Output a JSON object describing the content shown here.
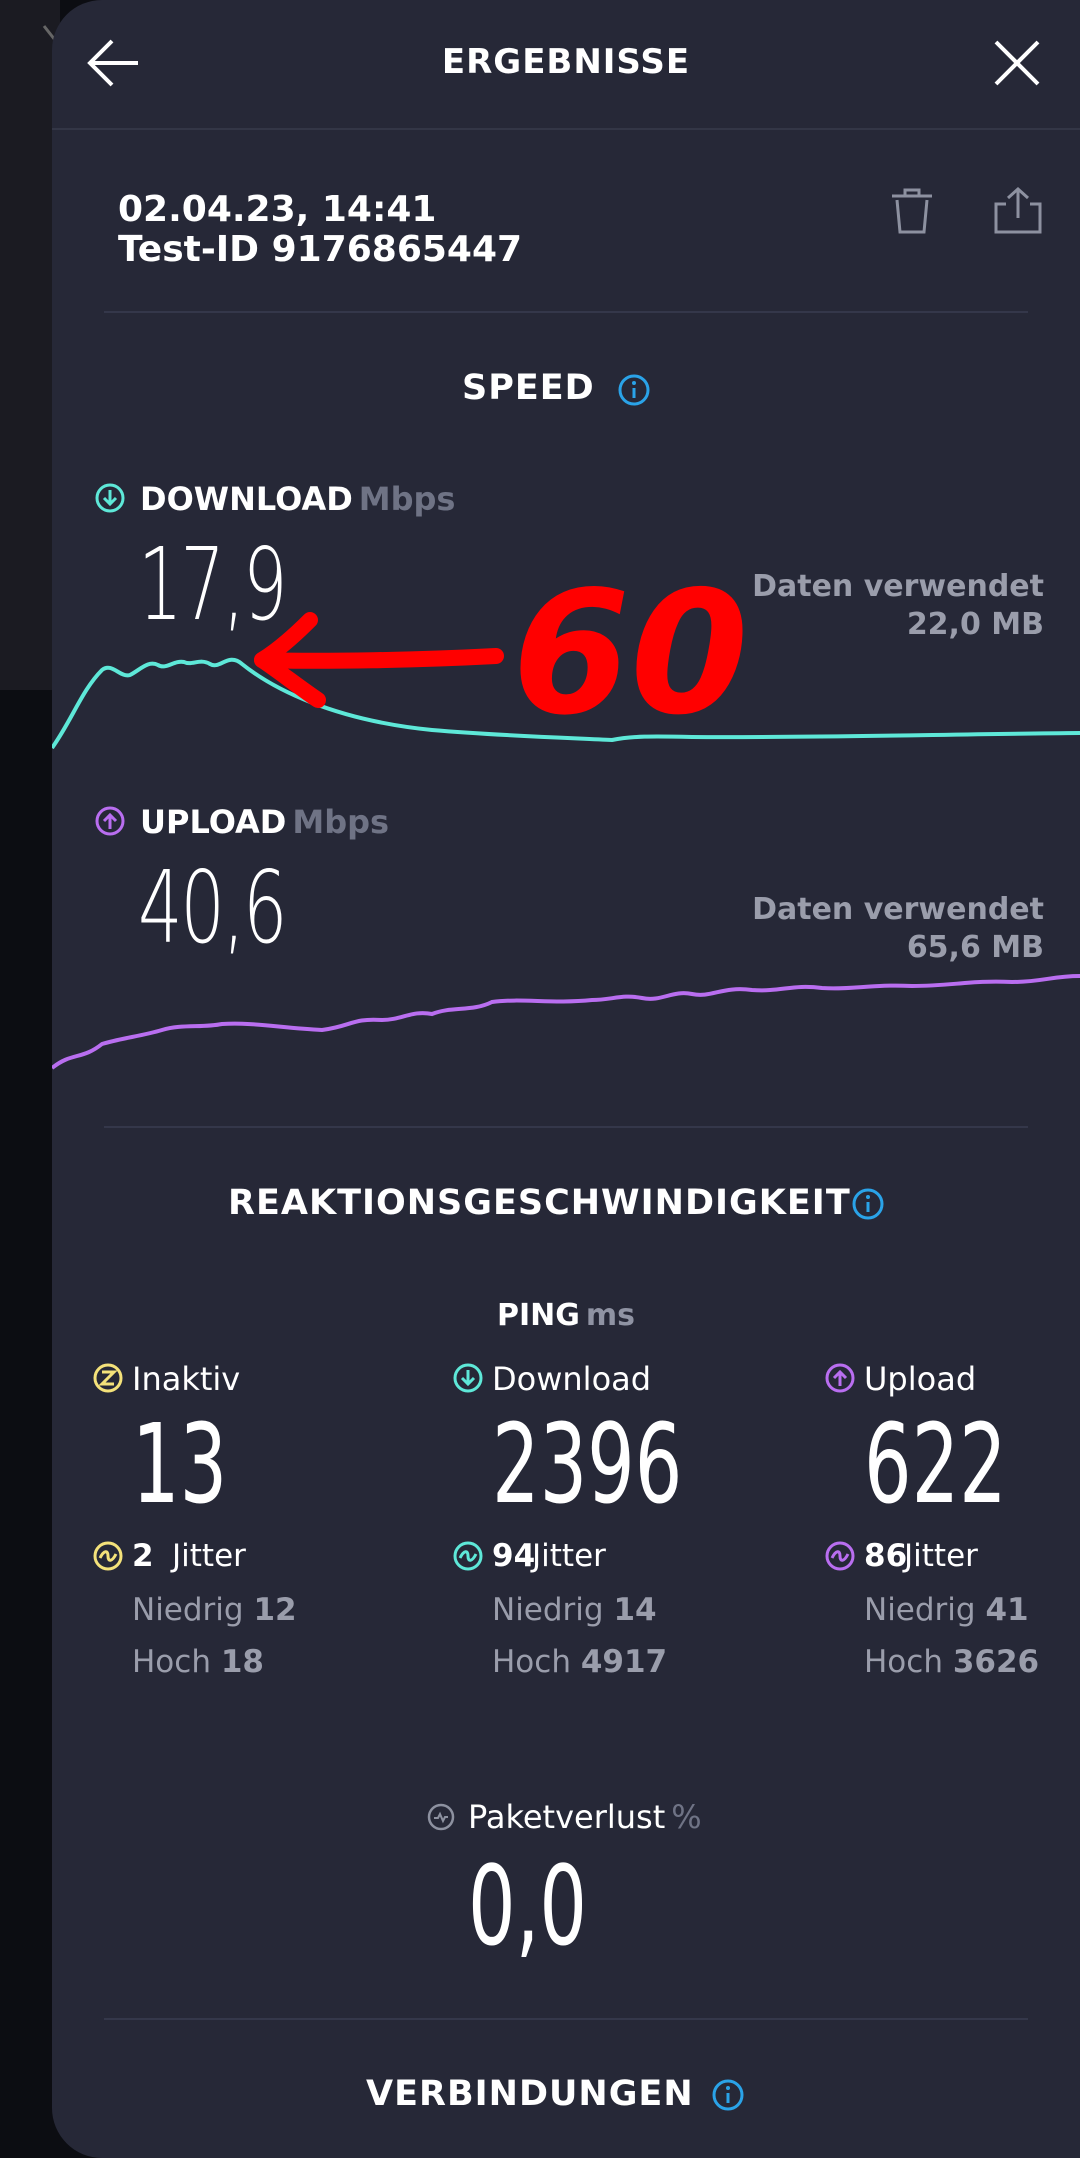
{
  "header": {
    "title": "ERGEBNISSE"
  },
  "meta": {
    "datetime": "02.04.23, 14:41",
    "test_id": "Test-ID 9176865447"
  },
  "speed": {
    "title": "SPEED",
    "download": {
      "label": "DOWNLOAD",
      "unit": "Mbps",
      "value": "17,9",
      "data_used_label": "Daten verwendet",
      "data_used_value": "22,0 MB"
    },
    "upload": {
      "label": "UPLOAD",
      "unit": "Mbps",
      "value": "40,6",
      "data_used_label": "Daten verwendet",
      "data_used_value": "65,6 MB"
    }
  },
  "latency": {
    "title": "REAKTIONSGESCHWINDIGKEIT",
    "ping_label": "PING",
    "ping_unit": "ms",
    "idle": {
      "label": "Inaktiv",
      "value": "13",
      "jitter_label": "Jitter",
      "jitter": "2",
      "low_label": "Niedrig",
      "low": "12",
      "high_label": "Hoch",
      "high": "18"
    },
    "download": {
      "label": "Download",
      "value": "2396",
      "jitter_label": "Jitter",
      "jitter": "94",
      "low_label": "Niedrig",
      "low": "14",
      "high_label": "Hoch",
      "high": "4917"
    },
    "upload": {
      "label": "Upload",
      "value": "622",
      "jitter_label": "Jitter",
      "jitter": "86",
      "low_label": "Niedrig",
      "low": "41",
      "high_label": "Hoch",
      "high": "3626"
    }
  },
  "packet_loss": {
    "label": "Paketverlust",
    "unit": "%",
    "value": "0,0"
  },
  "connections": {
    "title": "VERBINDUNGEN"
  },
  "annotation": {
    "text": "60"
  },
  "colors": {
    "download": "#5ee8d8",
    "upload": "#b96ef0",
    "idle": "#f4e27a",
    "info": "#2aa3e8",
    "annotation": "#ff0000"
  },
  "icons": [
    "back-arrow-icon",
    "close-icon",
    "trash-icon",
    "share-icon",
    "info-icon",
    "download-arrow-icon",
    "upload-arrow-icon",
    "idle-icon",
    "jitter-icon",
    "packet-loss-icon"
  ]
}
